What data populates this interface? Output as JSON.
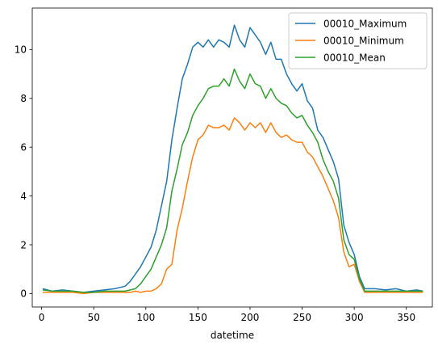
{
  "chart_data": {
    "type": "line",
    "title": "",
    "xlabel": "datetime",
    "ylabel": "",
    "xlim": [
      -9,
      375
    ],
    "ylim": [
      -0.55,
      11.7
    ],
    "xticks": [
      0,
      50,
      100,
      150,
      200,
      250,
      300,
      350
    ],
    "yticks": [
      0,
      2,
      4,
      6,
      8,
      10
    ],
    "legend_position": "top-right",
    "grid": false,
    "series": [
      {
        "name": "00010_Maximum",
        "color": "#1f77b4",
        "x": [
          1,
          10,
          20,
          30,
          40,
          50,
          60,
          70,
          80,
          85,
          90,
          95,
          100,
          105,
          110,
          115,
          120,
          125,
          130,
          135,
          140,
          145,
          150,
          155,
          160,
          165,
          170,
          175,
          180,
          185,
          190,
          195,
          200,
          205,
          210,
          215,
          220,
          225,
          230,
          235,
          240,
          245,
          250,
          255,
          260,
          265,
          270,
          275,
          280,
          285,
          290,
          295,
          300,
          305,
          310,
          320,
          330,
          340,
          350,
          360,
          366
        ],
        "values": [
          0.2,
          0.1,
          0.15,
          0.1,
          0.05,
          0.1,
          0.15,
          0.2,
          0.3,
          0.5,
          0.8,
          1.1,
          1.5,
          1.9,
          2.6,
          3.6,
          4.6,
          6.3,
          7.6,
          8.8,
          9.4,
          10.1,
          10.3,
          10.1,
          10.4,
          10.1,
          10.4,
          10.3,
          10.1,
          11.0,
          10.4,
          10.1,
          10.9,
          10.6,
          10.3,
          9.8,
          10.3,
          9.6,
          9.6,
          9.0,
          8.6,
          8.3,
          8.6,
          7.9,
          7.6,
          6.7,
          6.4,
          5.9,
          5.4,
          4.7,
          2.8,
          2.1,
          1.6,
          0.7,
          0.2,
          0.2,
          0.15,
          0.2,
          0.1,
          0.15,
          0.1
        ]
      },
      {
        "name": "00010_Minimum",
        "color": "#ff7f0e",
        "x": [
          1,
          10,
          20,
          30,
          40,
          50,
          60,
          70,
          80,
          85,
          90,
          95,
          100,
          105,
          110,
          115,
          120,
          125,
          130,
          135,
          140,
          145,
          150,
          155,
          160,
          165,
          170,
          175,
          180,
          185,
          190,
          195,
          200,
          205,
          210,
          215,
          220,
          225,
          230,
          235,
          240,
          245,
          250,
          255,
          260,
          265,
          270,
          275,
          280,
          285,
          290,
          295,
          300,
          305,
          310,
          320,
          330,
          340,
          350,
          360,
          366
        ],
        "values": [
          0.05,
          0.05,
          0.05,
          0.05,
          0.0,
          0.05,
          0.05,
          0.05,
          0.05,
          0.05,
          0.1,
          0.05,
          0.1,
          0.1,
          0.2,
          0.4,
          1.0,
          1.2,
          2.6,
          3.5,
          4.6,
          5.6,
          6.3,
          6.5,
          6.9,
          6.8,
          6.8,
          6.9,
          6.7,
          7.2,
          7.0,
          6.7,
          7.0,
          6.8,
          7.0,
          6.6,
          7.0,
          6.6,
          6.4,
          6.5,
          6.3,
          6.2,
          6.2,
          5.8,
          5.6,
          5.2,
          4.8,
          4.3,
          3.8,
          3.1,
          1.7,
          1.1,
          1.2,
          0.5,
          0.05,
          0.05,
          0.05,
          0.05,
          0.05,
          0.05,
          0.05
        ]
      },
      {
        "name": "00010_Mean",
        "color": "#2ca02c",
        "x": [
          1,
          10,
          20,
          30,
          40,
          50,
          60,
          70,
          80,
          85,
          90,
          95,
          100,
          105,
          110,
          115,
          120,
          125,
          130,
          135,
          140,
          145,
          150,
          155,
          160,
          165,
          170,
          175,
          180,
          185,
          190,
          195,
          200,
          205,
          210,
          215,
          220,
          225,
          230,
          235,
          240,
          245,
          250,
          255,
          260,
          265,
          270,
          275,
          280,
          285,
          290,
          295,
          300,
          305,
          310,
          320,
          330,
          340,
          350,
          360,
          366
        ],
        "values": [
          0.15,
          0.1,
          0.1,
          0.1,
          0.05,
          0.05,
          0.1,
          0.1,
          0.1,
          0.15,
          0.2,
          0.4,
          0.7,
          1.0,
          1.5,
          2.0,
          2.7,
          4.2,
          5.1,
          6.1,
          6.6,
          7.3,
          7.7,
          8.0,
          8.4,
          8.5,
          8.5,
          8.8,
          8.5,
          9.2,
          8.7,
          8.4,
          9.0,
          8.6,
          8.5,
          8.0,
          8.4,
          8.0,
          7.8,
          7.7,
          7.4,
          7.2,
          7.3,
          6.9,
          6.6,
          6.2,
          5.5,
          5.0,
          4.6,
          3.9,
          2.2,
          1.6,
          1.4,
          0.6,
          0.1,
          0.1,
          0.1,
          0.1,
          0.1,
          0.1,
          0.1
        ]
      }
    ]
  }
}
